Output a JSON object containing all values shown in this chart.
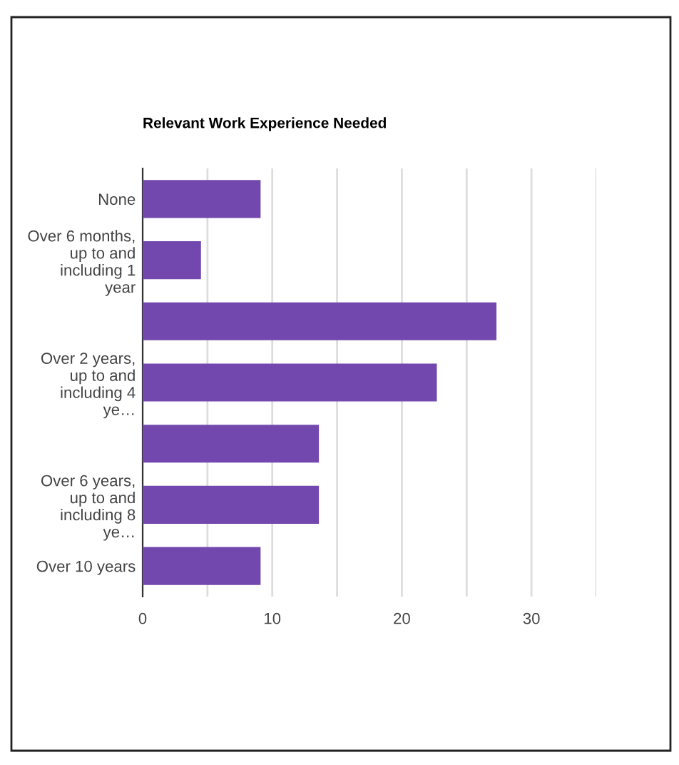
{
  "chart_data": {
    "type": "bar",
    "orientation": "horizontal",
    "title": "Relevant Work Experience Needed",
    "categories": [
      "None",
      "Over 6 months, up to and including 1 year",
      null,
      "Over 2 years, up to and including 4 ye…",
      null,
      "Over 6 years, up to and including 8 ye…",
      "Over 10 years"
    ],
    "values": [
      9.1,
      4.5,
      27.3,
      22.7,
      13.6,
      13.6,
      9.1
    ],
    "color": "#7248ae",
    "xlim": [
      0,
      35
    ],
    "xticks": [
      0,
      {
        "value": 5,
        "label": null
      },
      10,
      {
        "value": 15,
        "label": null
      },
      20,
      {
        "value": 25,
        "label": null
      },
      30,
      {
        "value": 35,
        "label": null
      }
    ],
    "grid": "x",
    "legend": false
  }
}
